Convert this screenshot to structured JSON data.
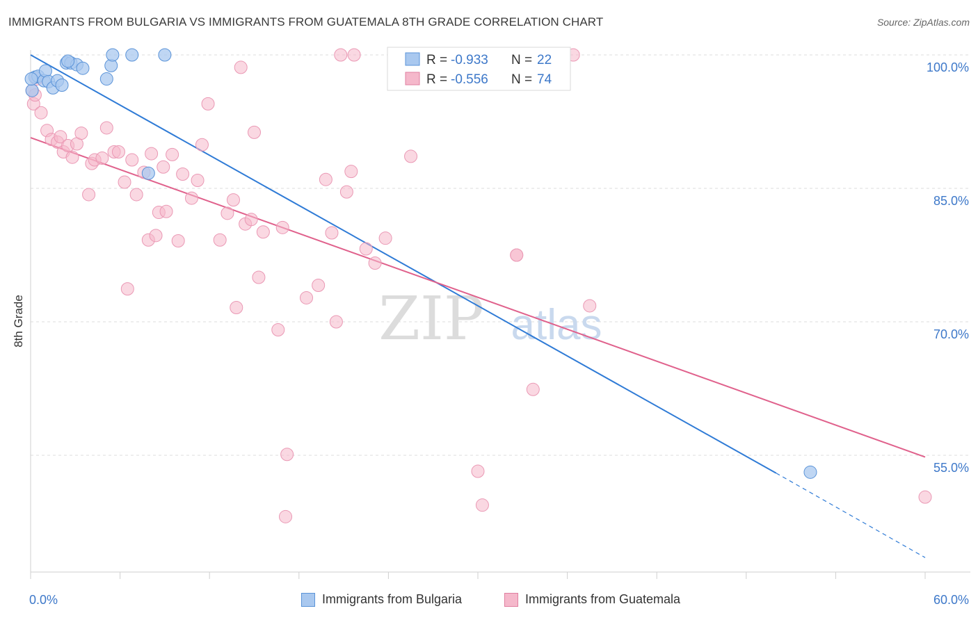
{
  "title": "IMMIGRANTS FROM BULGARIA VS IMMIGRANTS FROM GUATEMALA 8TH GRADE CORRELATION CHART",
  "source": "Source: ZipAtlas.com",
  "watermark": {
    "zip": "ZIP",
    "atlas": "atlas"
  },
  "colors": {
    "blue": "#2f7bd6",
    "blue_fill": "#a9c8ef",
    "pink": "#e0618c",
    "pink_fill": "#f5b8cb",
    "tick_label": "#3d78c9",
    "grid": "#dcdcdc"
  },
  "stats_legend": [
    {
      "r_label": "R =",
      "r_value": "-0.933",
      "n_label": "N =",
      "n_value": "22",
      "color": "blue"
    },
    {
      "r_label": "R =",
      "r_value": "-0.556",
      "n_label": "N =",
      "n_value": "74",
      "color": "pink"
    }
  ],
  "bottom_legend": [
    {
      "label": "Immigrants from Bulgaria",
      "color": "blue"
    },
    {
      "label": "Immigrants from Guatemala",
      "color": "pink"
    }
  ],
  "chart_data": {
    "type": "scatter",
    "title": "IMMIGRANTS FROM BULGARIA VS IMMIGRANTS FROM GUATEMALA 8TH GRADE CORRELATION CHART",
    "xlabel": "",
    "ylabel": "8th Grade",
    "xlim": [
      0,
      60
    ],
    "ylim": [
      40.5,
      100
    ],
    "x_tick_labels": [
      "0.0%",
      "60.0%"
    ],
    "y_ticks": [
      55,
      70,
      85,
      100
    ],
    "y_tick_labels": [
      "55.0%",
      "70.0%",
      "85.0%",
      "100.0%"
    ],
    "grid": true,
    "legend_placement": "top-center",
    "series": [
      {
        "name": "Immigrants from Bulgaria",
        "color": "blue",
        "r": -0.933,
        "n": 22,
        "points": [
          [
            0.1,
            96.0
          ],
          [
            0.3,
            97.5
          ],
          [
            0.5,
            97.6
          ],
          [
            0.9,
            97.1
          ],
          [
            1.0,
            98.2
          ],
          [
            1.2,
            97.0
          ],
          [
            1.5,
            96.3
          ],
          [
            1.8,
            97.1
          ],
          [
            2.1,
            96.6
          ],
          [
            2.4,
            99.1
          ],
          [
            2.7,
            99.1
          ],
          [
            3.1,
            98.9
          ],
          [
            3.5,
            98.5
          ],
          [
            5.1,
            97.3
          ],
          [
            5.4,
            98.8
          ],
          [
            5.5,
            100.0
          ],
          [
            6.8,
            100.0
          ],
          [
            7.9,
            86.7
          ],
          [
            9.0,
            100.0
          ],
          [
            52.3,
            53.1
          ],
          [
            0.05,
            97.3
          ],
          [
            2.5,
            99.3
          ]
        ],
        "trend": {
          "x": [
            0,
            50
          ],
          "y": [
            100,
            53
          ],
          "dashed_to": [
            60,
            43.5
          ]
        }
      },
      {
        "name": "Immigrants from Guatemala",
        "color": "pink",
        "r": -0.556,
        "n": 74,
        "points": [
          [
            0.1,
            96.0
          ],
          [
            0.2,
            94.5
          ],
          [
            0.4,
            97.3
          ],
          [
            0.7,
            93.5
          ],
          [
            1.1,
            91.5
          ],
          [
            1.4,
            90.5
          ],
          [
            1.8,
            90.2
          ],
          [
            2.0,
            90.8
          ],
          [
            2.2,
            89.1
          ],
          [
            2.5,
            89.8
          ],
          [
            2.8,
            88.5
          ],
          [
            3.1,
            90.0
          ],
          [
            3.4,
            91.2
          ],
          [
            3.9,
            84.3
          ],
          [
            4.1,
            87.8
          ],
          [
            4.3,
            88.2
          ],
          [
            4.8,
            88.4
          ],
          [
            5.1,
            91.8
          ],
          [
            5.6,
            89.1
          ],
          [
            5.9,
            89.1
          ],
          [
            6.3,
            85.7
          ],
          [
            6.5,
            73.7
          ],
          [
            6.8,
            88.2
          ],
          [
            7.1,
            84.3
          ],
          [
            7.6,
            86.8
          ],
          [
            7.9,
            79.2
          ],
          [
            8.1,
            88.9
          ],
          [
            8.4,
            79.7
          ],
          [
            8.6,
            82.3
          ],
          [
            8.9,
            87.4
          ],
          [
            9.1,
            82.4
          ],
          [
            9.5,
            88.8
          ],
          [
            9.9,
            79.1
          ],
          [
            10.2,
            86.6
          ],
          [
            10.8,
            83.9
          ],
          [
            11.2,
            85.9
          ],
          [
            11.5,
            89.9
          ],
          [
            11.9,
            94.5
          ],
          [
            12.7,
            79.2
          ],
          [
            13.2,
            82.2
          ],
          [
            13.6,
            83.7
          ],
          [
            13.8,
            71.6
          ],
          [
            14.1,
            98.6
          ],
          [
            14.4,
            81.0
          ],
          [
            14.8,
            81.5
          ],
          [
            15.0,
            91.3
          ],
          [
            15.3,
            75.0
          ],
          [
            15.6,
            80.1
          ],
          [
            16.6,
            69.1
          ],
          [
            16.9,
            80.6
          ],
          [
            17.2,
            55.1
          ],
          [
            17.1,
            48.1
          ],
          [
            18.5,
            72.7
          ],
          [
            19.3,
            74.1
          ],
          [
            19.8,
            86.0
          ],
          [
            20.2,
            80.0
          ],
          [
            20.5,
            70.0
          ],
          [
            20.8,
            100.0
          ],
          [
            21.2,
            84.6
          ],
          [
            21.5,
            86.9
          ],
          [
            21.7,
            100.0
          ],
          [
            22.5,
            78.2
          ],
          [
            23.1,
            76.6
          ],
          [
            23.8,
            79.4
          ],
          [
            25.5,
            88.6
          ],
          [
            30.0,
            53.2
          ],
          [
            30.3,
            49.4
          ],
          [
            32.6,
            77.5
          ],
          [
            32.6,
            77.5
          ],
          [
            33.7,
            62.4
          ],
          [
            36.4,
            100.0
          ],
          [
            37.5,
            71.8
          ],
          [
            60.0,
            50.3
          ],
          [
            0.3,
            95.5
          ]
        ],
        "trend": {
          "x": [
            0,
            60
          ],
          "y": [
            90.7,
            54.8
          ]
        }
      }
    ]
  }
}
